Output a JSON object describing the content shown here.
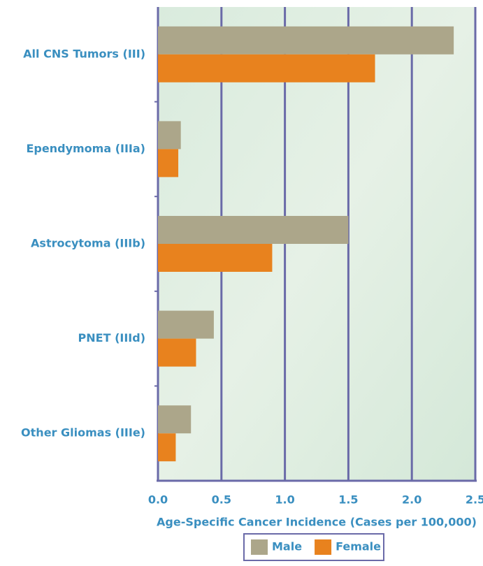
{
  "chart_data": {
    "type": "hbar",
    "categories": [
      "All CNS Tumors (III)",
      "Ependymoma (IIIa)",
      "Astrocytoma (IIIb)",
      "PNET (IIId)",
      "Other Gliomas (IIIe)"
    ],
    "series": [
      {
        "name": "Male",
        "color": "#aca68a",
        "values": [
          2.33,
          0.18,
          1.5,
          0.44,
          0.26
        ]
      },
      {
        "name": "Female",
        "color": "#e8821e",
        "values": [
          1.71,
          0.16,
          0.9,
          0.3,
          0.14
        ]
      }
    ],
    "xlabel": "Age-Specific Cancer Incidence (Cases per 100,000)",
    "xlim": [
      0,
      2.5
    ],
    "xticks": [
      {
        "value": 0,
        "label": "0.0"
      },
      0.5,
      {
        "value": 1,
        "label": "1.0"
      },
      1.5,
      {
        "value": 2,
        "label": "2.0"
      },
      2.5
    ],
    "grid": true,
    "legend": "bottom"
  }
}
